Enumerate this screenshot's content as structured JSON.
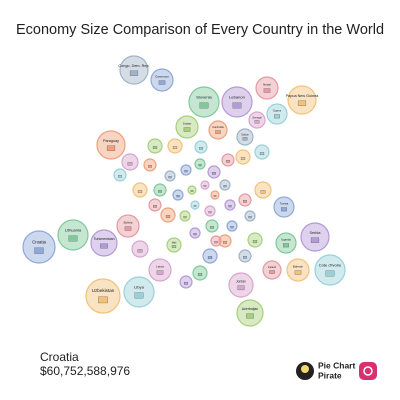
{
  "chart_data": {
    "type": "bubble",
    "title": "Economy Size Comparison of Every Country in the World",
    "categories": [
      "Croatia",
      "Lithuania",
      "Turkmenistan",
      "Bolivia",
      "Uzbekistan",
      "Libya",
      "Latvia",
      "Mali",
      "Paraguay",
      "Congo, Dem. Rep.",
      "Cameroon",
      "Slovenia",
      "Lebanon",
      "Nepal",
      "Papua New Guinea",
      "Cyprus",
      "Senegal",
      "Sudan",
      "Cambodia",
      "Gabon",
      "Tunisia",
      "Uganda",
      "Serbia",
      "Iceland",
      "Bahrain",
      "Cote d'Ivoire",
      "Jordan",
      "Azerbaijan",
      null,
      null,
      null,
      null,
      null,
      null,
      null,
      null,
      null,
      null,
      null,
      null,
      null,
      null,
      null,
      null,
      null,
      null,
      null,
      null,
      null,
      null,
      null,
      null,
      null,
      null,
      null,
      null,
      null,
      null,
      null,
      null,
      null,
      null,
      null,
      null,
      null,
      null,
      null,
      null
    ],
    "values": [
      60752588976,
      53400000000,
      40100000000,
      28700000000,
      68600000000,
      53400000000,
      28700000000,
      11600000000,
      46500000000,
      46500000000,
      28700000000,
      53400000000,
      53400000000,
      28700000000,
      46500000000,
      23700000000,
      15200000000,
      28700000000,
      19200000000,
      15200000000,
      23700000000,
      23700000000,
      46500000000,
      19200000000,
      28700000000,
      53400000000,
      34200000000,
      40100000000,
      8500000000,
      5900000000,
      5900000000,
      5900000000,
      8500000000,
      8500000000,
      11600000000,
      11600000000,
      3800000000,
      3800000000,
      3800000000,
      5900000000,
      5900000000,
      8500000000,
      5900000000,
      8500000000,
      15200000000,
      3800000000,
      5900000000,
      5900000000,
      11600000000,
      5900000000,
      5900000000,
      8500000000,
      6000000000,
      8500000000,
      11600000000,
      8500000000,
      15200000000,
      11600000000,
      8500000000,
      8500000000,
      11600000000,
      11600000000,
      8500000000,
      5900000000,
      11600000000,
      8500000000,
      15200000000,
      11600000000
    ],
    "palette": [
      "#8fa8d8",
      "#7fc99a",
      "#b49ad6",
      "#e59aa0",
      "#f2c27a",
      "#9ad0d8",
      "#d9a3cf",
      "#a6d07c",
      "#f0a07a",
      "#9fb3c8"
    ],
    "highlight": {
      "name": "Croatia",
      "value": 60752588976,
      "label": "$60,752,588,976"
    },
    "brand_lines": [
      "Pie Chart",
      "Pirate"
    ]
  }
}
